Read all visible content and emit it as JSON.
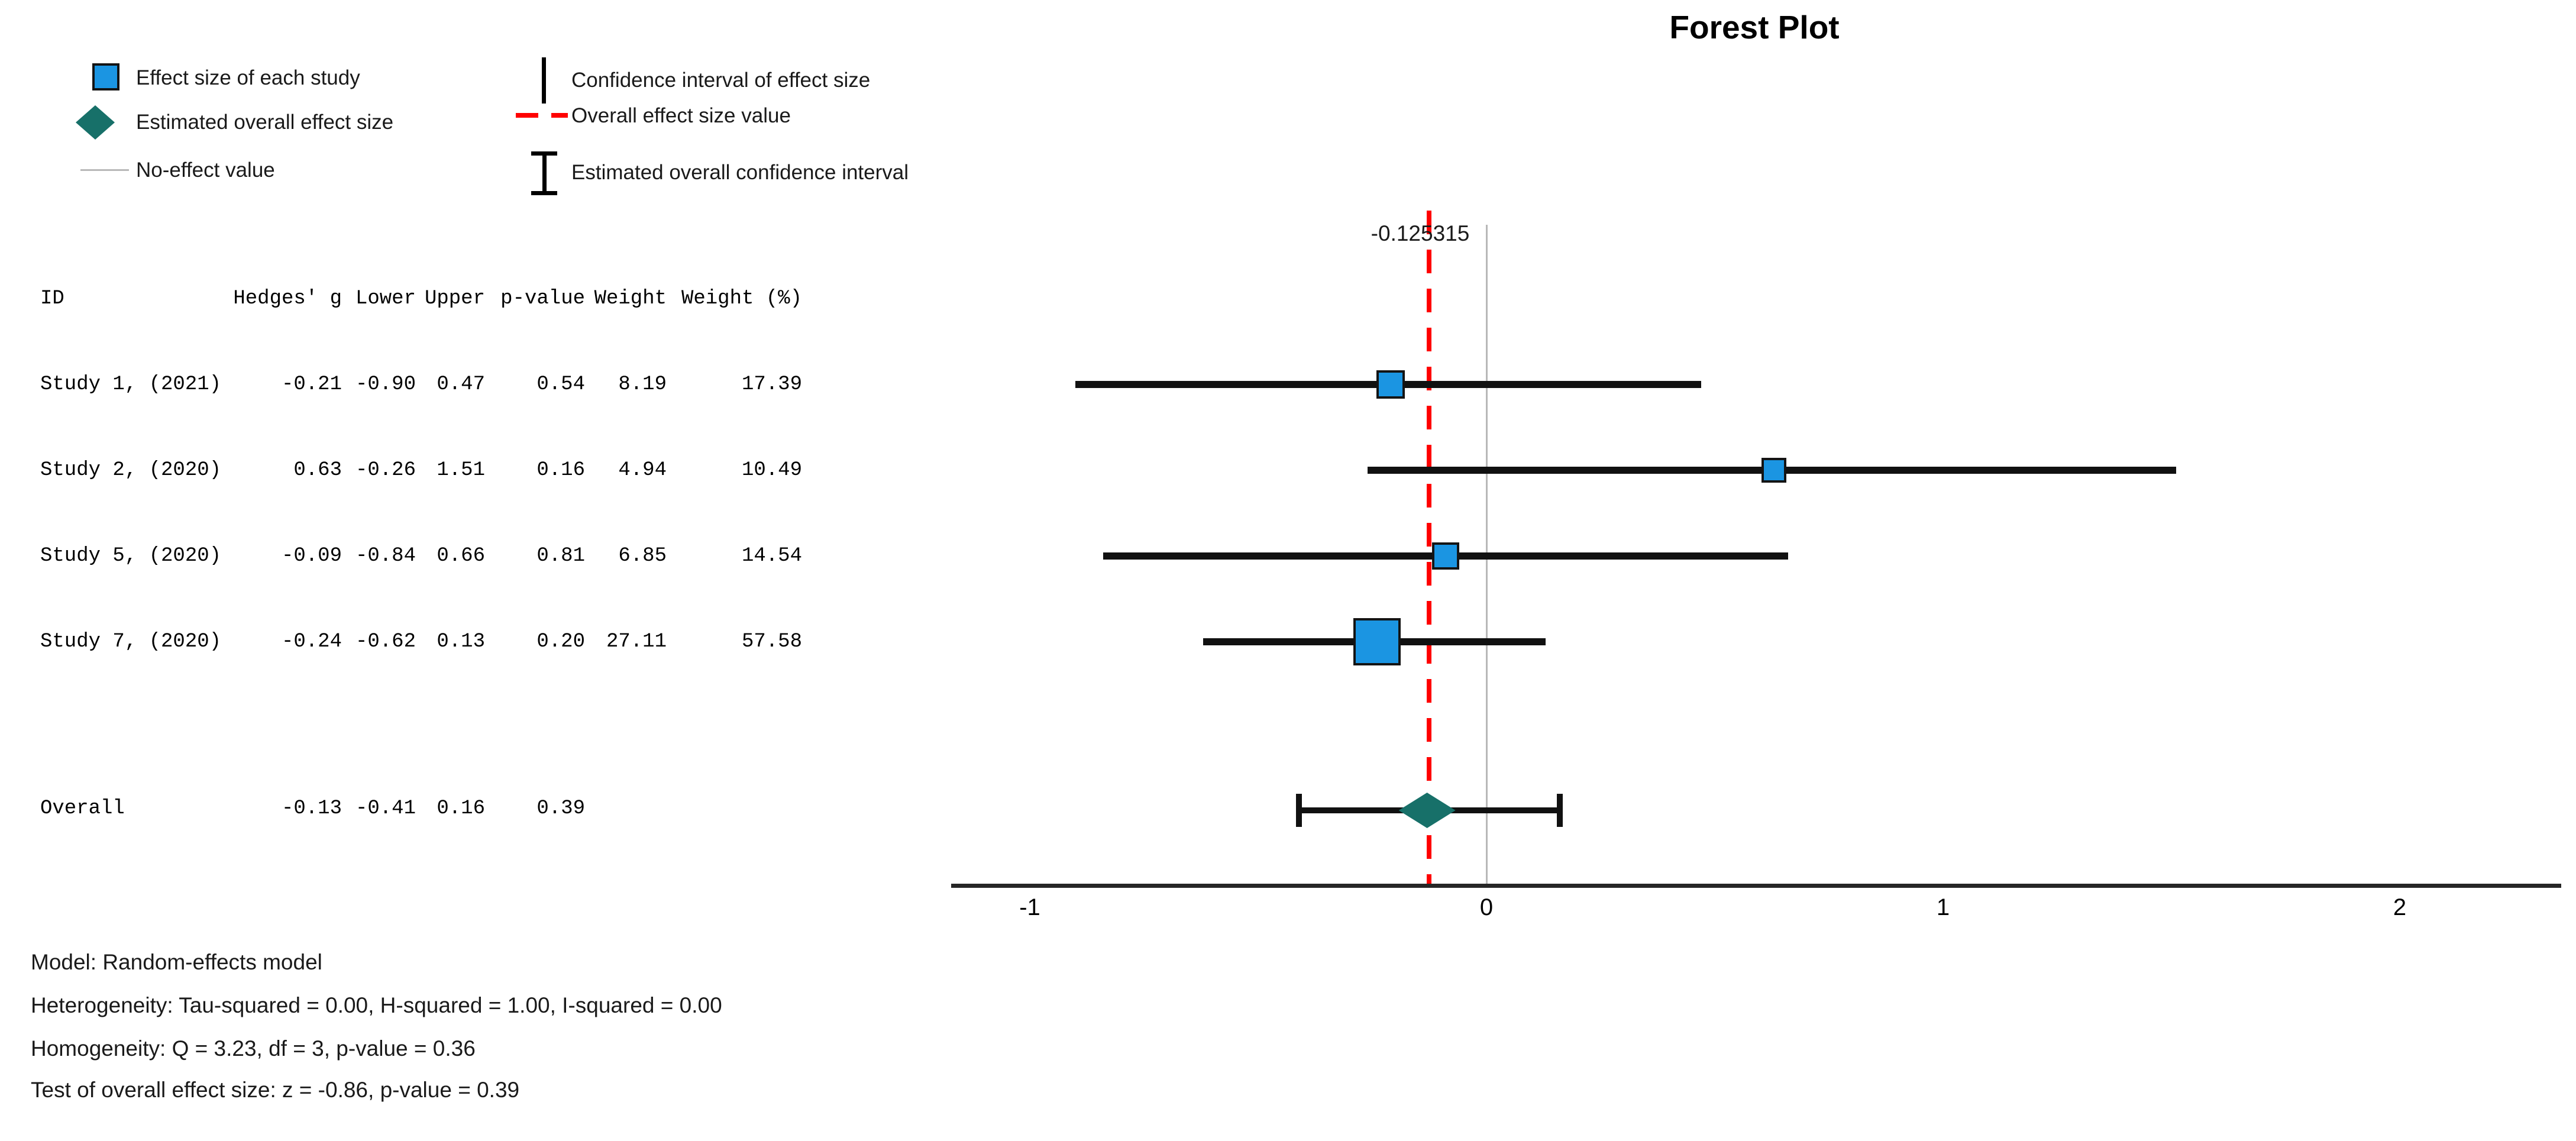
{
  "title": "Forest Plot",
  "legend": {
    "effect_size": "Effect size of each study",
    "overall_effect": "Estimated overall effect size",
    "no_effect": "No-effect value",
    "ci": "Confidence interval of effect size",
    "overall_value": "Overall effect size value",
    "overall_ci": "Estimated overall confidence interval"
  },
  "colors": {
    "study_marker": "#1b95e2",
    "overall_marker": "#177069",
    "overall_effect_line": "#ff0000",
    "no_effect_line": "#b8b8b8",
    "ci_line": "#111111"
  },
  "table": {
    "headers": {
      "id": "ID",
      "g": "Hedges' g",
      "lower": "Lower",
      "upper": "Upper",
      "p": "p-value",
      "weight": "Weight",
      "weight_pct": "Weight (%)"
    },
    "rows": [
      {
        "id": "Study 1, (2021)",
        "g": "-0.21",
        "lower": "-0.90",
        "upper": "0.47",
        "p": "0.54",
        "weight": "8.19",
        "weight_pct": "17.39"
      },
      {
        "id": "Study 2, (2020)",
        "g": "0.63",
        "lower": "-0.26",
        "upper": "1.51",
        "p": "0.16",
        "weight": "4.94",
        "weight_pct": "10.49"
      },
      {
        "id": "Study 5, (2020)",
        "g": "-0.09",
        "lower": "-0.84",
        "upper": "0.66",
        "p": "0.81",
        "weight": "6.85",
        "weight_pct": "14.54"
      },
      {
        "id": "Study 7, (2020)",
        "g": "-0.24",
        "lower": "-0.62",
        "upper": "0.13",
        "p": "0.20",
        "weight": "27.11",
        "weight_pct": "57.58"
      }
    ],
    "overall_row": {
      "id": "Overall",
      "g": "-0.13",
      "lower": "-0.41",
      "upper": "0.16",
      "p": "0.39",
      "weight": "",
      "weight_pct": ""
    }
  },
  "plot": {
    "overall_value_label": "-0.125315"
  },
  "chart_data": {
    "type": "forest",
    "title": "Forest Plot",
    "xlabel": "",
    "ylabel": "",
    "x_axis": {
      "ticks": [
        -1,
        0,
        1,
        2
      ],
      "range": [
        -1.17,
        2.35
      ],
      "grid": false
    },
    "no_effect_value": 0,
    "overall_effect_value": -0.125315,
    "studies": [
      {
        "id": "Study 1, (2021)",
        "hedges_g": -0.21,
        "lower": -0.9,
        "upper": 0.47,
        "p_value": 0.54,
        "weight": 8.19,
        "weight_pct": 17.39
      },
      {
        "id": "Study 2, (2020)",
        "hedges_g": 0.63,
        "lower": -0.26,
        "upper": 1.51,
        "p_value": 0.16,
        "weight": 4.94,
        "weight_pct": 10.49
      },
      {
        "id": "Study 5, (2020)",
        "hedges_g": -0.09,
        "lower": -0.84,
        "upper": 0.66,
        "p_value": 0.81,
        "weight": 6.85,
        "weight_pct": 14.54
      },
      {
        "id": "Study 7, (2020)",
        "hedges_g": -0.24,
        "lower": -0.62,
        "upper": 0.13,
        "p_value": 0.2,
        "weight": 27.11,
        "weight_pct": 57.58
      }
    ],
    "overall": {
      "id": "Overall",
      "hedges_g": -0.13,
      "lower": -0.41,
      "upper": 0.16,
      "p_value": 0.39
    }
  },
  "footer": {
    "model": "Model: Random-effects model",
    "heterogeneity": "Heterogeneity: Tau-squared = 0.00, H-squared = 1.00, I-squared = 0.00",
    "homogeneity": "Homogeneity: Q = 3.23, df = 3, p-value = 0.36",
    "test": "Test of overall effect size: z = -0.86, p-value = 0.39"
  }
}
